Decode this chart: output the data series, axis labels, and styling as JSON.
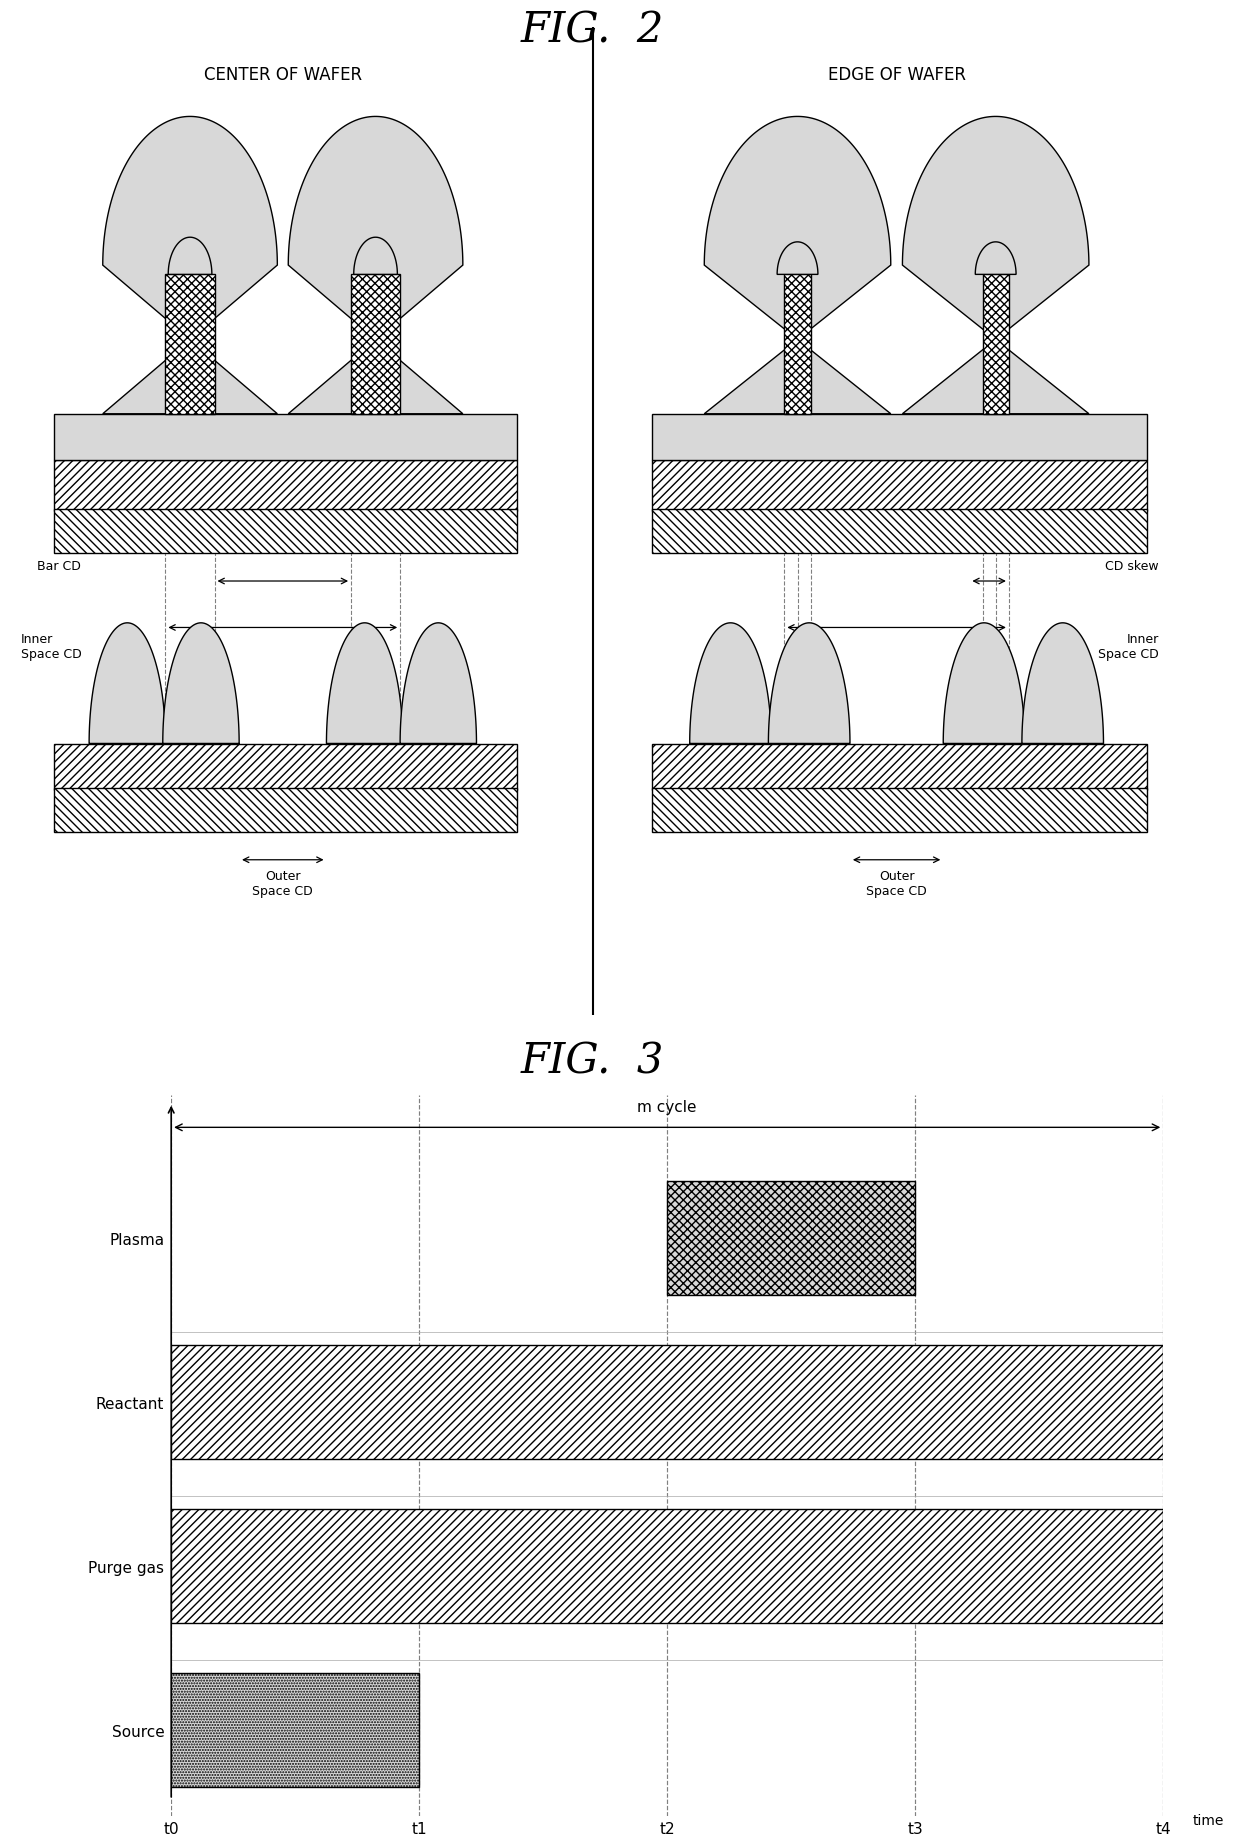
{
  "fig2_title": "FIG.  2",
  "fig3_title": "FIG.  3",
  "left_label": "CENTER OF WAFER",
  "right_label": "EDGE OF WAFER",
  "bar_cd_label": "Bar CD",
  "inner_space_cd_label": "Inner\nSpace CD",
  "outer_space_cd_label": "Outer\nSpace CD",
  "cd_skew_label": "CD skew",
  "inner_space_cd_label_r": "Inner\nSpace CD",
  "outer_space_cd_label_r": "Outer\nSpace CD",
  "m_cycle_label": "m cycle",
  "time_label": "time",
  "plasma_label": "Plasma",
  "reactant_label": "Reactant",
  "purge_gas_label": "Purge gas",
  "source_label": "Source",
  "t_labels": [
    "t0",
    "t1",
    "t2",
    "t3",
    "t4"
  ],
  "bg_color": "#ffffff",
  "light_gray": "#d8d8d8",
  "med_gray": "#bbbbbb",
  "dark_gray": "#888888"
}
